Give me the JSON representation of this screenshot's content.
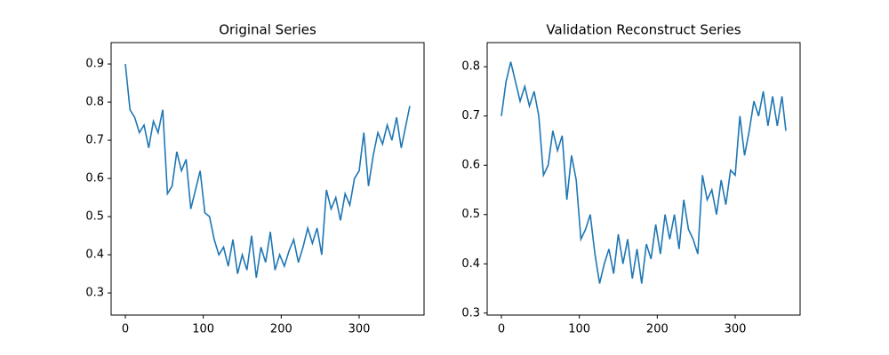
{
  "chart_data": [
    {
      "type": "line",
      "title": "Original Series",
      "color": "#1f77b4",
      "x": [
        0,
        6,
        12,
        18,
        24,
        30,
        36,
        42,
        48,
        54,
        60,
        66,
        72,
        78,
        84,
        90,
        96,
        102,
        108,
        114,
        120,
        126,
        132,
        138,
        144,
        150,
        156,
        162,
        168,
        174,
        180,
        186,
        192,
        198,
        204,
        210,
        216,
        222,
        228,
        234,
        240,
        246,
        252,
        258,
        264,
        270,
        276,
        282,
        288,
        294,
        300,
        306,
        312,
        318,
        324,
        330,
        336,
        342,
        348,
        354,
        360,
        365
      ],
      "values": [
        0.9,
        0.78,
        0.76,
        0.72,
        0.74,
        0.68,
        0.75,
        0.72,
        0.78,
        0.56,
        0.58,
        0.67,
        0.62,
        0.65,
        0.52,
        0.57,
        0.62,
        0.51,
        0.5,
        0.44,
        0.4,
        0.42,
        0.37,
        0.44,
        0.35,
        0.4,
        0.36,
        0.45,
        0.34,
        0.42,
        0.38,
        0.46,
        0.36,
        0.4,
        0.37,
        0.41,
        0.44,
        0.38,
        0.42,
        0.47,
        0.43,
        0.47,
        0.4,
        0.57,
        0.52,
        0.55,
        0.49,
        0.56,
        0.53,
        0.6,
        0.62,
        0.72,
        0.58,
        0.66,
        0.72,
        0.69,
        0.74,
        0.7,
        0.76,
        0.68,
        0.74,
        0.79
      ],
      "xlim": [
        -18.25,
        383.25
      ],
      "ylim": [
        0.242,
        0.956
      ],
      "xticks": [
        0,
        100,
        200,
        300
      ],
      "yticks": [
        0.3,
        0.4,
        0.5,
        0.6,
        0.7,
        0.8,
        0.9
      ]
    },
    {
      "type": "line",
      "title": "Validation Reconstruct Series",
      "color": "#1f77b4",
      "x": [
        0,
        6,
        12,
        18,
        24,
        30,
        36,
        42,
        48,
        54,
        60,
        66,
        72,
        78,
        84,
        90,
        96,
        102,
        108,
        114,
        120,
        126,
        132,
        138,
        144,
        150,
        156,
        162,
        168,
        174,
        180,
        186,
        192,
        198,
        204,
        210,
        216,
        222,
        228,
        234,
        240,
        246,
        252,
        258,
        264,
        270,
        276,
        282,
        288,
        294,
        300,
        306,
        312,
        318,
        324,
        330,
        336,
        342,
        348,
        354,
        360,
        365
      ],
      "values": [
        0.7,
        0.77,
        0.81,
        0.77,
        0.73,
        0.76,
        0.72,
        0.75,
        0.7,
        0.58,
        0.6,
        0.67,
        0.63,
        0.66,
        0.53,
        0.62,
        0.57,
        0.45,
        0.47,
        0.5,
        0.42,
        0.36,
        0.4,
        0.43,
        0.38,
        0.46,
        0.4,
        0.45,
        0.37,
        0.43,
        0.36,
        0.44,
        0.41,
        0.48,
        0.42,
        0.5,
        0.45,
        0.5,
        0.43,
        0.53,
        0.47,
        0.45,
        0.42,
        0.58,
        0.53,
        0.55,
        0.5,
        0.57,
        0.52,
        0.59,
        0.58,
        0.7,
        0.62,
        0.67,
        0.73,
        0.7,
        0.75,
        0.68,
        0.74,
        0.68,
        0.74,
        0.67
      ],
      "xlim": [
        -18.25,
        383.25
      ],
      "ylim": [
        0.296,
        0.849
      ],
      "xticks": [
        0,
        100,
        200,
        300
      ],
      "yticks": [
        0.3,
        0.4,
        0.5,
        0.6,
        0.7,
        0.8
      ]
    }
  ]
}
